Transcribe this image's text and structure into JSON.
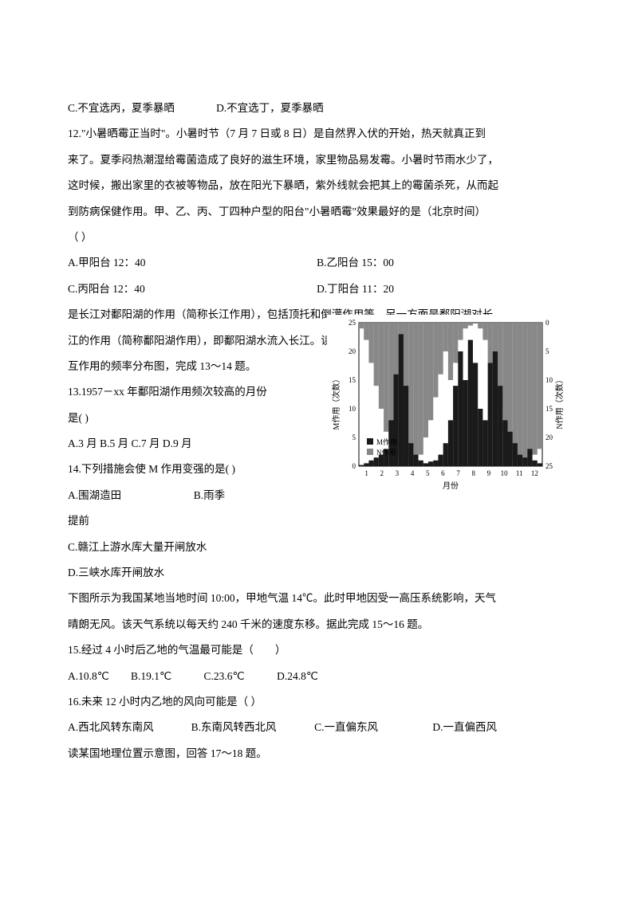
{
  "lines": {
    "l1a": "C.不宜选丙，夏季暴晒",
    "l1b": "D.不宜选丁，夏季暴晒",
    "l2": "12.\"小暑晒霉正当时\"。小暑时节（7 月 7 日或 8 日）是自然界入伏的开始，热天就真正到",
    "l3": "来了。夏季闷热潮湿给霉菌造成了良好的滋生环境，家里物品易发霉。小暑时节雨水少了，",
    "l4": "这时候，搬出家里的衣被等物品，放在阳光下暴晒，紫外线就会把其上的霉菌杀死，从而起",
    "l5": "到防病保健作用。甲、乙、丙、丁四种户型的阳台\"小暑晒霉\"效果最好的是（北京时间）",
    "l6": "（    ）",
    "l7a": "A.甲阳台 12：40",
    "l7b": "B.乙阳台 15：00",
    "l8a": "C.丙阳台 12：40",
    "l8b": "D.丁阳台 11：20",
    "l9": "是长江对鄱阳湖的作用（简称长江作用），包括顶托和倒灌作用等，另一方面是鄱阳湖对长",
    "l10": "江的作用（简称鄱阳湖作用），即鄱阳湖水流入长江。读 1957－xx 年长江作用与鄱阳湖的相",
    "l11": "互作用的频率分布图，完成 13～14 题。",
    "l12": "13.1957－xx 年鄱阳湖作用频次较高的月份",
    "l13": "是(    )",
    "l14": "A.3 月    B.5 月    C.7 月    D.9 月",
    "l15": "14.下列措施会使 M 作用变强的是(    )",
    "l16a": "A.围湖造田",
    "l16b": "B.雨季",
    "l17": "提前",
    "l18": "C.赣江上游水库大量开闸放水",
    "l19": "D.三峡水库开闸放水",
    "l20": "下图所示为我国某地当地时间 10:00，甲地气温 14℃。此时甲地因受一高压系统影响，天气",
    "l21": "晴朗无风。该天气系统以每天约 240 千米的速度东移。据此完成 15～16 题。",
    "l22": "15.经过 4 小时后乙地的气温最可能是（　　）",
    "l23a": " A.10.8℃",
    "l23b": "B.19.1℃",
    "l23c": "C.23.6℃",
    "l23d": "D.24.8℃",
    "l24": "16.未来 12 小时内乙地的风向可能是（     ）",
    "l25a": "A.西北风转东南风",
    "l25b": "B.东南风转西北风",
    "l25c": "C.一直偏东风",
    "l25d": "D.一直偏西风",
    "l26": "读某国地理位置示意图，回答 17～18 题。"
  },
  "chart": {
    "type": "dual-axis-area",
    "xlabel": "月份",
    "ylabel_left": "M作用（次数）",
    "ylabel_right": "N作用（次数）",
    "xticks": [
      1,
      2,
      3,
      4,
      5,
      6,
      7,
      8,
      9,
      10,
      11,
      12
    ],
    "yticks_left": [
      0,
      5,
      10,
      15,
      20,
      25
    ],
    "yticks_right": [
      0,
      5,
      10,
      15,
      20,
      25
    ],
    "left_axis_color": "#000000",
    "right_axis_color": "#000000",
    "m_color": "#1a1a1a",
    "n_color": "#888888",
    "background_color": "#ffffff",
    "axis_fontsize": 10,
    "label_fontsize": 11,
    "legend_m": "M作用",
    "legend_n": "N作用",
    "m_series": [
      0.2,
      0.5,
      1,
      1.5,
      2,
      3,
      8,
      16,
      23,
      14,
      4,
      2,
      1,
      0.5,
      0.8,
      1,
      2,
      4,
      8,
      14,
      20,
      15,
      22,
      18,
      10,
      8,
      18,
      20,
      14,
      8,
      6,
      4,
      2,
      1.5,
      3,
      1,
      0.5
    ],
    "n_series": [
      24,
      22,
      18,
      14,
      10,
      6,
      4,
      2,
      1,
      0.5,
      0.5,
      1,
      2,
      5,
      8,
      12,
      16,
      20,
      15,
      18,
      22,
      24,
      24.5,
      25,
      24,
      22,
      18,
      14,
      10,
      6,
      3,
      1,
      0.5,
      0.5,
      1,
      2,
      3
    ]
  }
}
